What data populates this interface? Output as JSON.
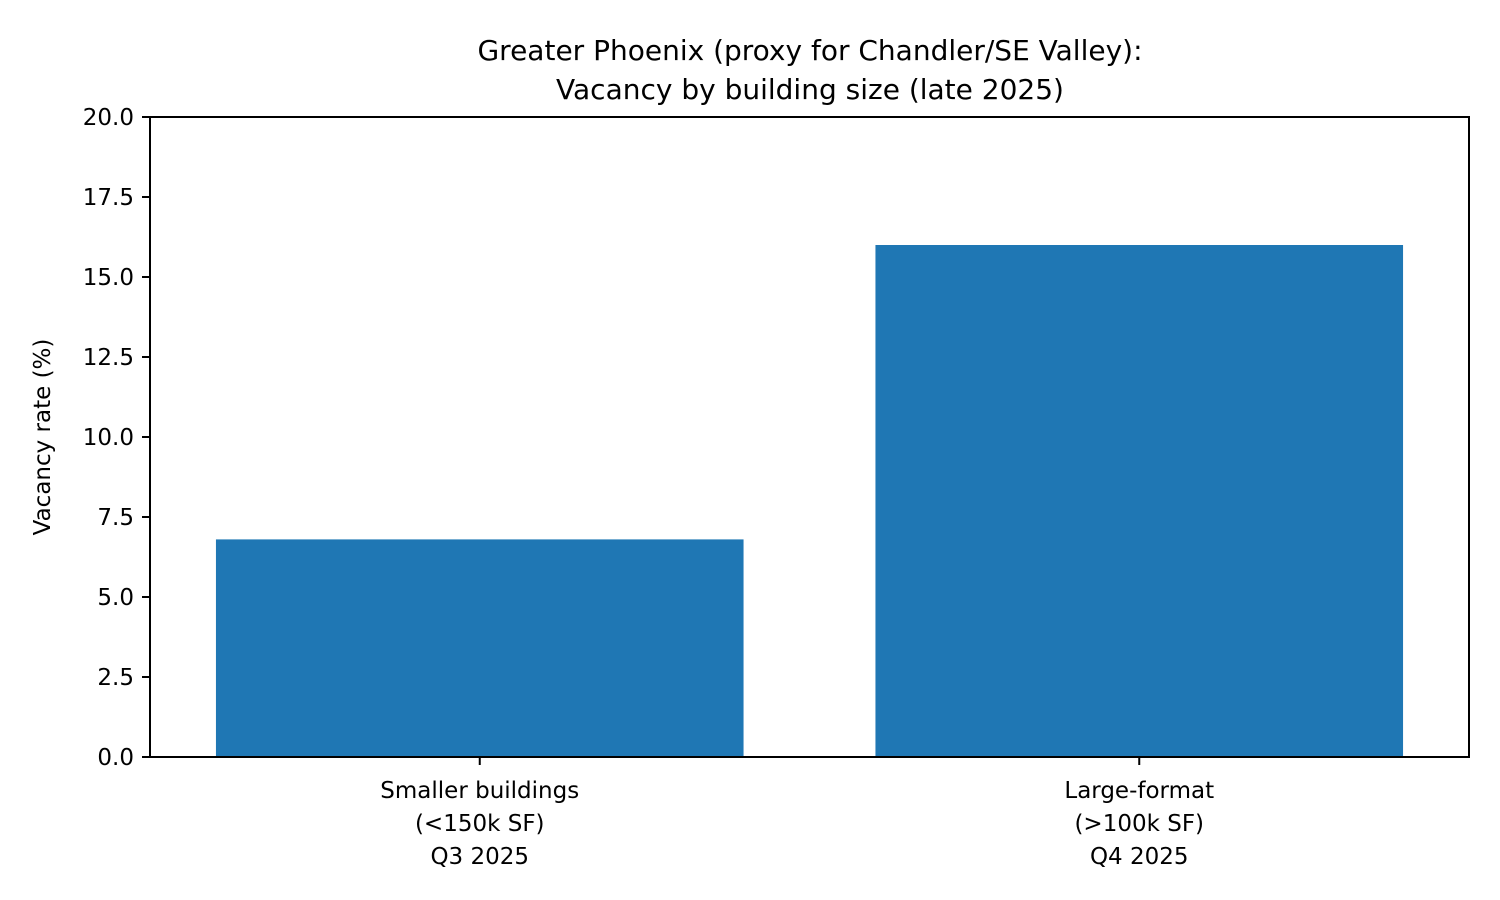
{
  "chart_data": {
    "type": "bar",
    "title": "Greater Phoenix (proxy for Chandler/SE Valley):\nVacancy by building size (late 2025)",
    "title_lines": [
      "Greater Phoenix (proxy for Chandler/SE Valley):",
      "Vacancy by building size (late 2025)"
    ],
    "xlabel": "",
    "ylabel": "Vacancy rate (%)",
    "categories": [
      [
        "Smaller buildings",
        "(<150k SF)",
        "Q3 2025"
      ],
      [
        "Large-format",
        "(>100k SF)",
        "Q4 2025"
      ]
    ],
    "values": [
      6.8,
      16.0
    ],
    "ylim": [
      0,
      20
    ],
    "yticks": [
      "0.0",
      "2.5",
      "5.0",
      "7.5",
      "10.0",
      "12.5",
      "15.0",
      "17.5",
      "20.0"
    ],
    "ytick_values": [
      0,
      2.5,
      5,
      7.5,
      10,
      12.5,
      15,
      17.5,
      20
    ],
    "grid": false,
    "legend": "none",
    "bar_color": "#1f77b4"
  }
}
